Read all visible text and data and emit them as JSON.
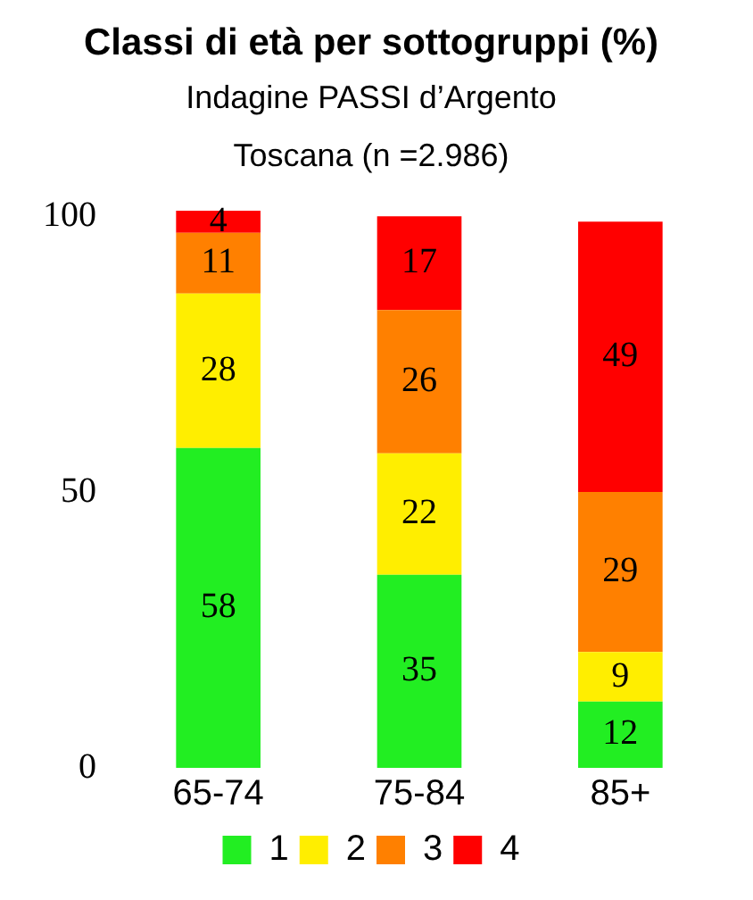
{
  "chart_data": {
    "type": "bar",
    "title": "Classi di età per sottogruppi (%)",
    "subtitle": "Indagine PASSI d’Argento",
    "annotations": [
      "Toscana (n =2.986)"
    ],
    "categories": [
      "65-74",
      "75-84",
      "85+"
    ],
    "stacked": true,
    "series": [
      {
        "name": "1",
        "color": "#22ee22",
        "values": [
          58,
          35,
          12
        ]
      },
      {
        "name": "2",
        "color": "#ffee00",
        "values": [
          28,
          22,
          9
        ]
      },
      {
        "name": "3",
        "color": "#ff8000",
        "values": [
          11,
          26,
          29
        ]
      },
      {
        "name": "4",
        "color": "#ff0000",
        "values": [
          4,
          17,
          49
        ]
      }
    ],
    "ylim": [
      0,
      101
    ],
    "yticks": [
      0,
      50,
      100
    ],
    "grid": false,
    "legend": "bottom",
    "data_labels": true
  }
}
